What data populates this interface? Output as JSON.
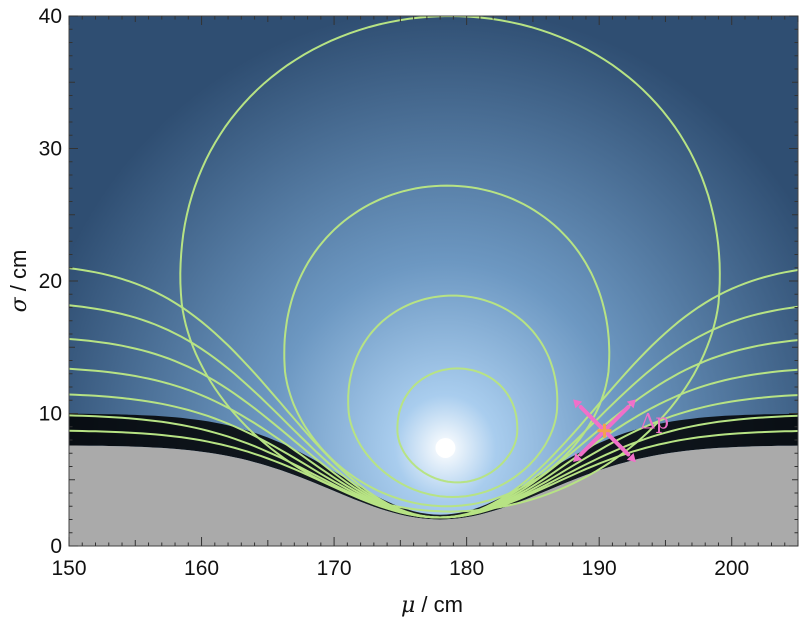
{
  "chart_data": {
    "type": "contour",
    "title": "",
    "xlabel": {
      "symbol": "μ",
      "unit": " / cm"
    },
    "ylabel": {
      "symbol": "σ",
      "unit": " / cm"
    },
    "xlim": [
      150,
      205
    ],
    "ylim": [
      0,
      40
    ],
    "x_ticks": [
      "150",
      "160",
      "170",
      "180",
      "190",
      "200"
    ],
    "y_ticks": [
      "0",
      "10",
      "20",
      "30",
      "40"
    ],
    "peak": {
      "x": 178.4,
      "y": 7.4
    },
    "contours": [
      {
        "level": 1,
        "x_left": 174.8,
        "x_right": 183.8,
        "y_top": 13.4,
        "y_bottom": 4.8
      },
      {
        "level": 2,
        "x_left": 171.1,
        "x_right": 186.8,
        "y_top": 18.9,
        "y_bottom": 3.7
      },
      {
        "level": 3,
        "x_left": 166.3,
        "x_right": 190.7,
        "y_top": 27.2,
        "y_bottom": 3.0
      },
      {
        "level": 4,
        "x_left": 158.5,
        "x_right": 199.0,
        "y_top": 40.0,
        "y_bottom": 2.6
      }
    ],
    "fan_line_count": 7,
    "grey_region": {
      "description": "excluded region",
      "y_left": 7.6,
      "y_center": 2.0,
      "y_right": 7.6
    },
    "marker": {
      "x": 190.4,
      "y": 8.7,
      "label": "Δp"
    },
    "colors": {
      "contour": "#b7e384",
      "peak": "#ffffff",
      "mid": "#6d98c2",
      "outer": "#2f4e72",
      "edge": "#000000",
      "grey": "#aaaaaa",
      "marker": "#f070c9",
      "marker_center": "#f3a24f"
    }
  }
}
